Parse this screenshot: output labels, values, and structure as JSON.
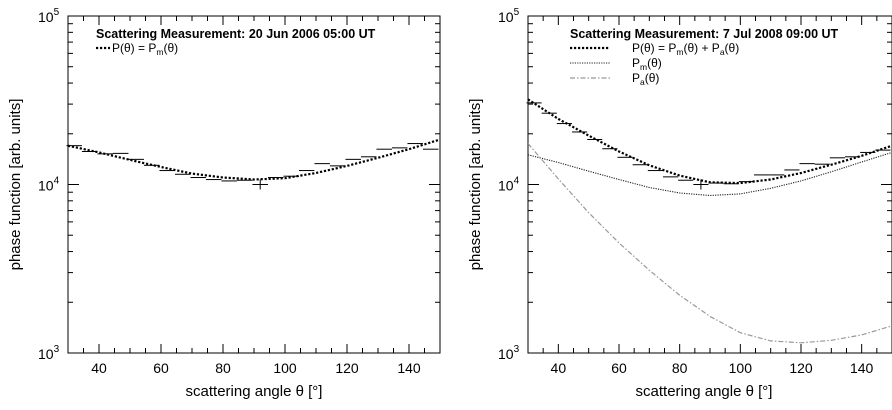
{
  "chart_data": [
    {
      "type": "line",
      "title": "Scattering Measurement: 20 Jun 2006 05:00 UT",
      "xlabel": "scattering angle θ [°]",
      "ylabel": "phase function [arb. units]",
      "xlim": [
        30,
        150
      ],
      "ylim": [
        1000,
        100000
      ],
      "yscale": "log",
      "x_ticks": [
        "40",
        "60",
        "80",
        "100",
        "120",
        "140"
      ],
      "y_ticks": [
        {
          "base": "10",
          "exp": "3"
        },
        {
          "base": "10",
          "exp": "4"
        },
        {
          "base": "10",
          "exp": "5"
        }
      ],
      "legend": [
        {
          "label": "P(θ) = P",
          "sub": "m",
          "tail": "(θ)",
          "style": "dotted-thick"
        }
      ],
      "measurements": {
        "x": [
          32,
          37,
          42,
          47,
          52,
          57,
          62,
          67,
          72,
          77,
          82,
          87,
          92,
          97,
          102,
          107,
          112,
          117,
          122,
          127,
          132,
          137,
          142,
          147
        ],
        "y": [
          17000,
          15700,
          15200,
          15300,
          14100,
          13000,
          12100,
          11500,
          11000,
          10700,
          10500,
          10600,
          10000,
          11000,
          11200,
          12100,
          13300,
          12900,
          14100,
          14600,
          16200,
          16500,
          17500,
          16200
        ],
        "xerr": 2.5
      },
      "series": [
        {
          "style": "dotted-thick",
          "x": [
            30,
            40,
            50,
            60,
            70,
            80,
            90,
            100,
            110,
            120,
            130,
            140,
            150
          ],
          "y": [
            17000,
            15500,
            14000,
            12700,
            11600,
            11000,
            10700,
            10900,
            11700,
            12900,
            14400,
            16200,
            18500
          ]
        }
      ]
    },
    {
      "type": "line",
      "title": "Scattering Measurement: 7 Jul 2008 09:00 UT",
      "xlabel": "scattering angle θ [°]",
      "ylabel": "phase function [arb. units]",
      "xlim": [
        30,
        150
      ],
      "ylim": [
        1000,
        100000
      ],
      "yscale": "log",
      "x_ticks": [
        "40",
        "60",
        "80",
        "100",
        "120",
        "140"
      ],
      "y_ticks": [
        {
          "base": "10",
          "exp": "3"
        },
        {
          "base": "10",
          "exp": "4"
        },
        {
          "base": "10",
          "exp": "5"
        }
      ],
      "legend": [
        {
          "label": "P(θ) = P",
          "sub": "m",
          "tail": "(θ) + P",
          "sub2": "a",
          "tail2": "(θ)",
          "style": "dotted-thick"
        },
        {
          "label": "P",
          "sub": "m",
          "tail": "(θ)",
          "style": "dotted-thin"
        },
        {
          "label": "P",
          "sub": "a",
          "tail": "(θ)",
          "style": "dashdot-gray"
        }
      ],
      "measurements": {
        "x": [
          32,
          37,
          42,
          47,
          52,
          57,
          62,
          67,
          72,
          77,
          82,
          87,
          92,
          97,
          102,
          107,
          112,
          117,
          122,
          127,
          132,
          137,
          142,
          147
        ],
        "y": [
          30500,
          26500,
          23000,
          20500,
          18500,
          16300,
          14500,
          13100,
          12100,
          11100,
          10600,
          10000,
          10200,
          10100,
          10400,
          11400,
          11400,
          12200,
          13300,
          13200,
          14400,
          14600,
          15500,
          16000
        ],
        "xerr": 2.5
      },
      "series": [
        {
          "style": "dotted-thick",
          "x": [
            30,
            40,
            50,
            60,
            70,
            80,
            90,
            100,
            110,
            120,
            130,
            140,
            150
          ],
          "y": [
            32000,
            24500,
            19500,
            15700,
            13000,
            11300,
            10300,
            10200,
            10700,
            11700,
            13100,
            14800,
            17000
          ]
        },
        {
          "style": "dotted-thin",
          "x": [
            30,
            40,
            50,
            60,
            70,
            80,
            90,
            100,
            110,
            120,
            130,
            140,
            150
          ],
          "y": [
            15000,
            13500,
            12000,
            10700,
            9600,
            8900,
            8600,
            8800,
            9500,
            10500,
            11900,
            13600,
            15500
          ]
        },
        {
          "style": "dashdot-gray",
          "x": [
            30,
            40,
            50,
            60,
            70,
            80,
            90,
            100,
            110,
            120,
            130,
            140,
            150
          ],
          "y": [
            17500,
            10800,
            6800,
            4500,
            3100,
            2200,
            1650,
            1320,
            1180,
            1150,
            1190,
            1280,
            1450
          ]
        }
      ]
    }
  ]
}
